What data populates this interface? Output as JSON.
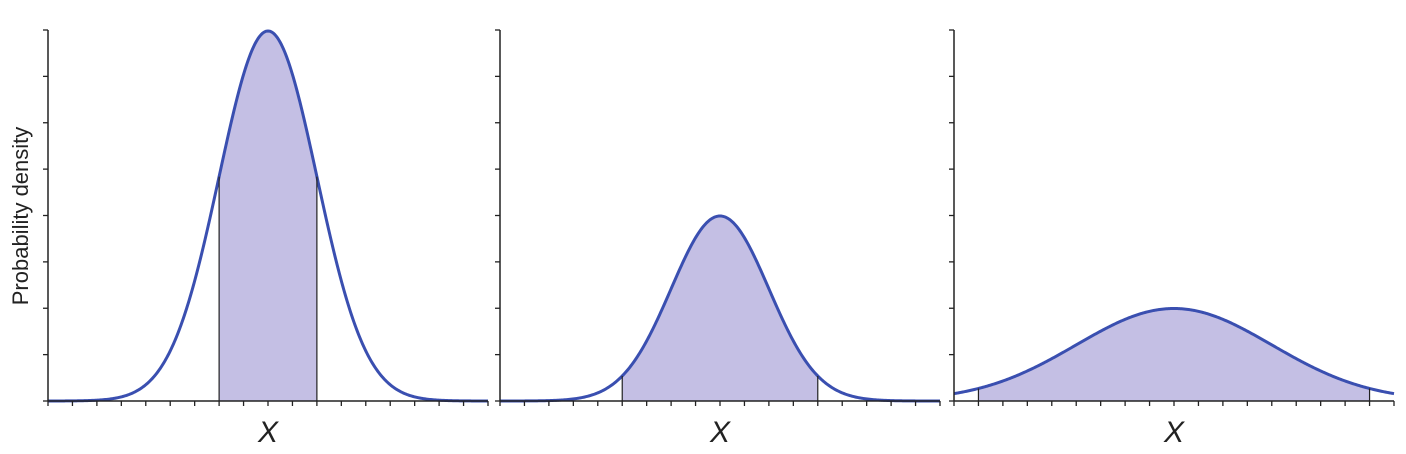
{
  "colors": {
    "curve": "#3a4fb0",
    "fill": "#c4bfe4",
    "axis": "#222222"
  },
  "chart_data": [
    {
      "type": "area",
      "ylabel": "Probability density",
      "xlabel": "X",
      "mean": 0,
      "sd": 1,
      "xlim": [
        -4.5,
        4.5
      ],
      "shaded_interval": [
        -1,
        1
      ],
      "ylim": [
        0,
        0.4
      ],
      "grid": false
    },
    {
      "type": "area",
      "ylabel": "",
      "xlabel": "X",
      "mean": 0,
      "sd": 2,
      "xlim": [
        -9,
        9
      ],
      "shaded_interval": [
        -4,
        4
      ],
      "ylim": [
        0,
        0.4
      ],
      "grid": false
    },
    {
      "type": "area",
      "ylabel": "",
      "xlabel": "X",
      "mean": 0,
      "sd": 4,
      "xlim": [
        -9,
        9
      ],
      "shaded_interval": [
        -8,
        8
      ],
      "ylim": [
        0,
        0.4
      ],
      "grid": false
    }
  ]
}
